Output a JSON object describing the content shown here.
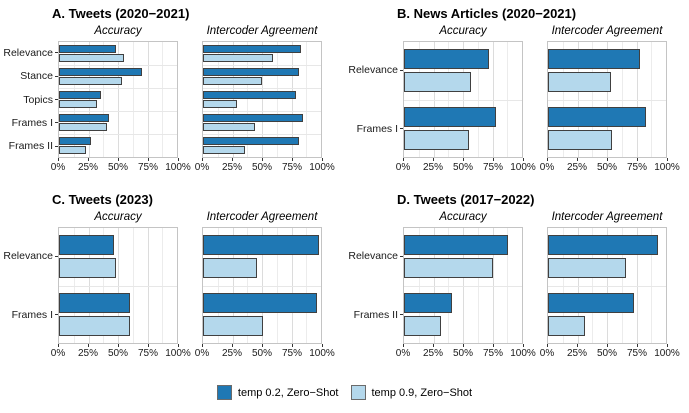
{
  "figure": {
    "x_tick_labels": [
      "0%",
      "25%",
      "50%",
      "75%",
      "100%"
    ],
    "x_tick_positions": [
      0,
      25,
      50,
      75,
      100
    ],
    "grid": {
      "major_v": [
        25,
        50,
        75
      ],
      "minor_v": [
        12.5,
        37.5,
        62.5,
        87.5
      ]
    },
    "colors": {
      "temp02": "#1f78b4",
      "temp09": "#b4d8ec",
      "bar_border": "#404040",
      "frame": "#c4c4c4"
    },
    "legend": [
      {
        "label": "temp 0.2, Zero−Shot",
        "color": "#1f78b4"
      },
      {
        "label": "temp 0.9, Zero−Shot",
        "color": "#b4d8ec"
      }
    ]
  },
  "chart_data": [
    {
      "type": "bar",
      "orientation": "horizontal",
      "panel_label": "A",
      "title": "A. Tweets (2020−2021)",
      "categories": [
        "Relevance",
        "Stance",
        "Topics",
        "Frames I",
        "Frames II"
      ],
      "xlim": [
        0,
        100
      ],
      "x_ticks": [
        "0%",
        "25%",
        "50%",
        "75%",
        "100%"
      ],
      "subcharts": [
        {
          "title": "Accuracy",
          "series": [
            {
              "name": "temp 0.2, Zero−Shot",
              "color": "#1f78b4",
              "values": [
                48,
                70,
                36,
                42,
                27
              ]
            },
            {
              "name": "temp 0.9, Zero−Shot",
              "color": "#b4d8ec",
              "values": [
                55,
                53,
                32,
                41,
                23
              ]
            }
          ]
        },
        {
          "title": "Intercoder Agreement",
          "series": [
            {
              "name": "temp 0.2, Zero−Shot",
              "color": "#1f78b4",
              "values": [
                83,
                81,
                79,
                85,
                81
              ]
            },
            {
              "name": "temp 0.9, Zero−Shot",
              "color": "#b4d8ec",
              "values": [
                59,
                50,
                29,
                44,
                36
              ]
            }
          ]
        }
      ]
    },
    {
      "type": "bar",
      "orientation": "horizontal",
      "panel_label": "B",
      "title": "B. News Articles (2020−2021)",
      "categories": [
        "Relevance",
        "Frames I"
      ],
      "xlim": [
        0,
        100
      ],
      "x_ticks": [
        "0%",
        "25%",
        "50%",
        "75%",
        "100%"
      ],
      "subcharts": [
        {
          "title": "Accuracy",
          "series": [
            {
              "name": "temp 0.2, Zero−Shot",
              "color": "#1f78b4",
              "values": [
                72,
                78
              ]
            },
            {
              "name": "temp 0.9, Zero−Shot",
              "color": "#b4d8ec",
              "values": [
                57,
                55
              ]
            }
          ]
        },
        {
          "title": "Intercoder Agreement",
          "series": [
            {
              "name": "temp 0.2, Zero−Shot",
              "color": "#1f78b4",
              "values": [
                78,
                83
              ]
            },
            {
              "name": "temp 0.9, Zero−Shot",
              "color": "#b4d8ec",
              "values": [
                53,
                54
              ]
            }
          ]
        }
      ]
    },
    {
      "type": "bar",
      "orientation": "horizontal",
      "panel_label": "C",
      "title": "C. Tweets (2023)",
      "categories": [
        "Relevance",
        "Frames I"
      ],
      "xlim": [
        0,
        100
      ],
      "x_ticks": [
        "0%",
        "25%",
        "50%",
        "75%",
        "100%"
      ],
      "subcharts": [
        {
          "title": "Accuracy",
          "series": [
            {
              "name": "temp 0.2, Zero−Shot",
              "color": "#1f78b4",
              "values": [
                47,
                60
              ]
            },
            {
              "name": "temp 0.9, Zero−Shot",
              "color": "#b4d8ec",
              "values": [
                48,
                60
              ]
            }
          ]
        },
        {
          "title": "Intercoder Agreement",
          "series": [
            {
              "name": "temp 0.2, Zero−Shot",
              "color": "#1f78b4",
              "values": [
                98,
                97
              ]
            },
            {
              "name": "temp 0.9, Zero−Shot",
              "color": "#b4d8ec",
              "values": [
                46,
                51
              ]
            }
          ]
        }
      ]
    },
    {
      "type": "bar",
      "orientation": "horizontal",
      "panel_label": "D",
      "title": "D. Tweets (2017−2022)",
      "categories": [
        "Relevance",
        "Frames II"
      ],
      "xlim": [
        0,
        100
      ],
      "x_ticks": [
        "0%",
        "25%",
        "50%",
        "75%",
        "100%"
      ],
      "subcharts": [
        {
          "title": "Accuracy",
          "series": [
            {
              "name": "temp 0.2, Zero−Shot",
              "color": "#1f78b4",
              "values": [
                88,
                41
              ]
            },
            {
              "name": "temp 0.9, Zero−Shot",
              "color": "#b4d8ec",
              "values": [
                75,
                31
              ]
            }
          ]
        },
        {
          "title": "Intercoder Agreement",
          "series": [
            {
              "name": "temp 0.2, Zero−Shot",
              "color": "#1f78b4",
              "values": [
                93,
                73
              ]
            },
            {
              "name": "temp 0.9, Zero−Shot",
              "color": "#b4d8ec",
              "values": [
                66,
                31
              ]
            }
          ]
        }
      ]
    }
  ]
}
